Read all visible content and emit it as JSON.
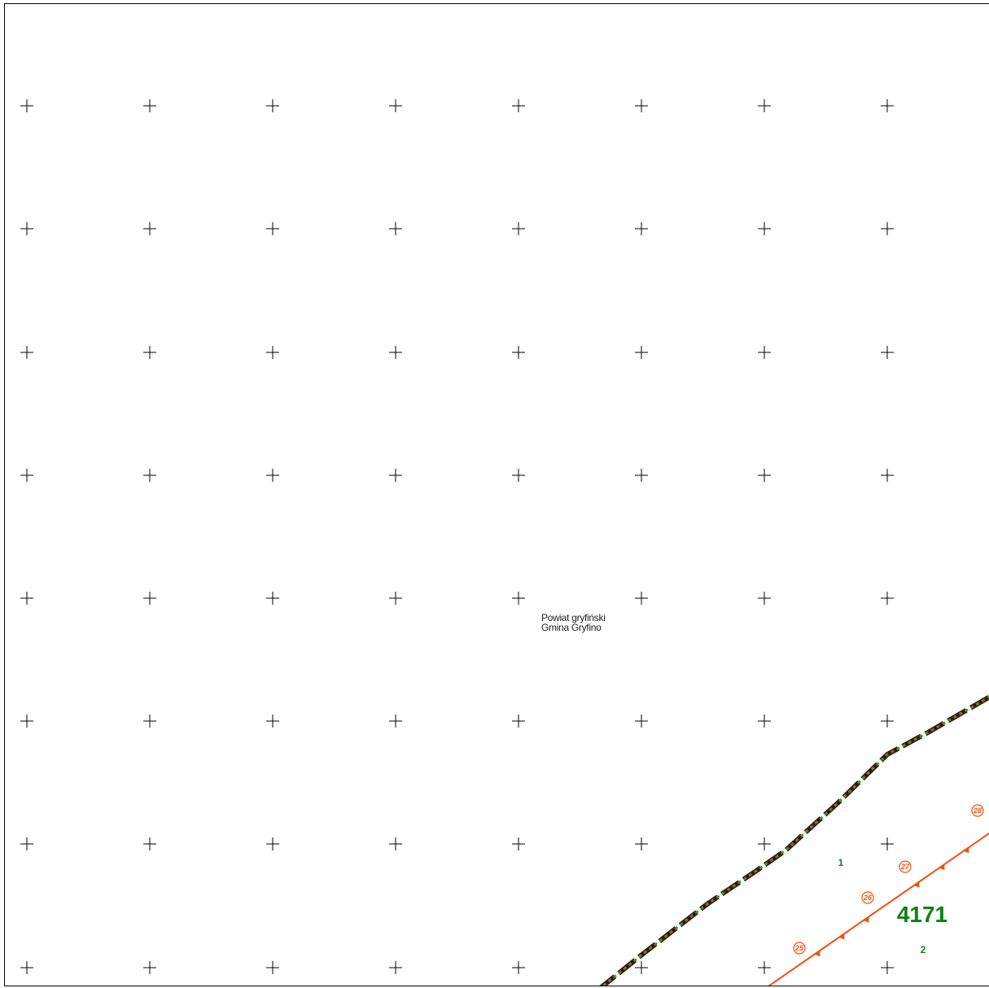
{
  "map": {
    "region_labels": {
      "powiat": "Powiat gryfiński",
      "gmina": "Gmina Gryfino"
    },
    "parcel_number": "4171",
    "subparcel_labels": [
      "1",
      "2"
    ],
    "boundary_point_labels": [
      "25",
      "26",
      "27",
      "28"
    ],
    "colors": {
      "grid_cross": "#000000",
      "admin_boundary_dark": "#4a0e0e",
      "admin_boundary_green": "#2e9e2e",
      "parcel_line": "#f05010",
      "parcel_text": "#138013",
      "label_text": "#222222"
    }
  }
}
